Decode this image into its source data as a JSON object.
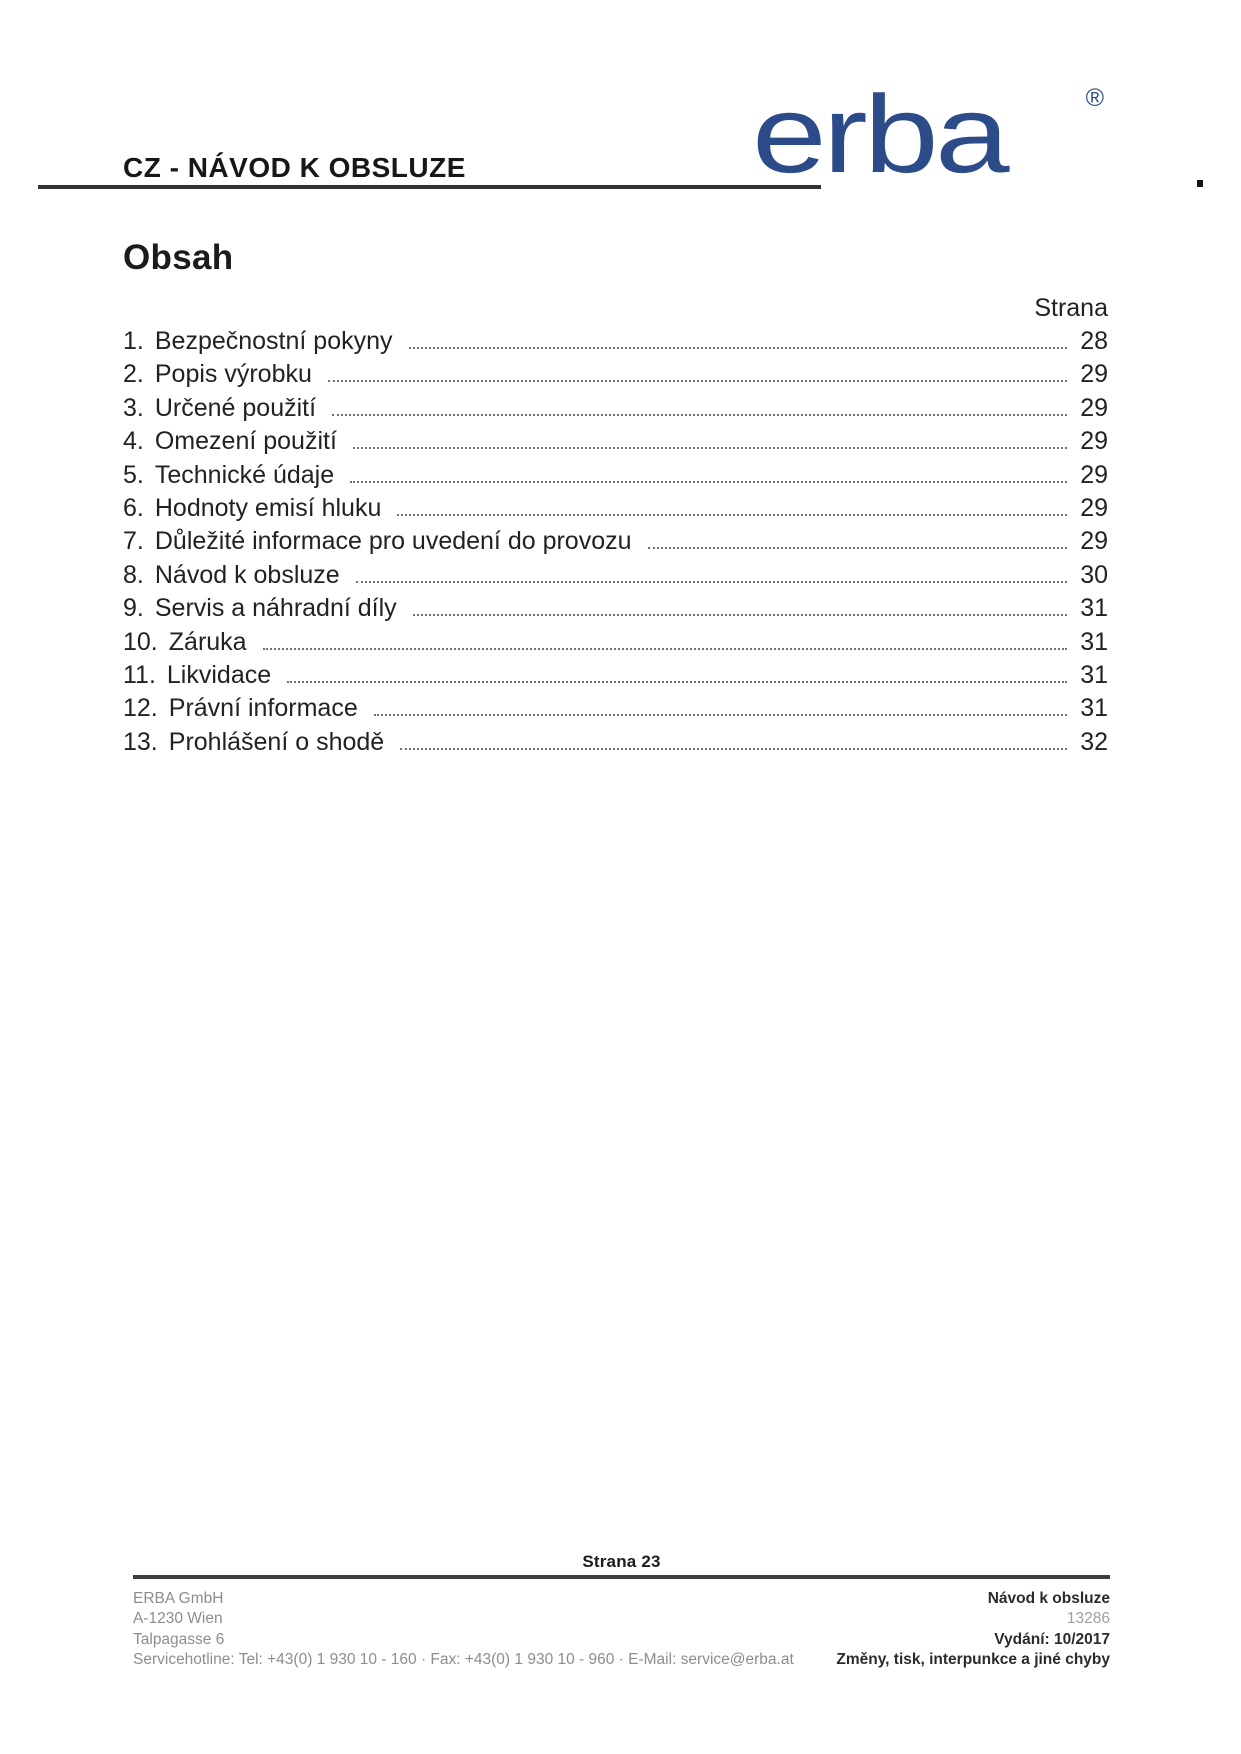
{
  "header": {
    "title": "CZ - NÁVOD K OBSLUZE",
    "logo": {
      "text": "erba",
      "registered_mark": "®",
      "color": "#2b4c88"
    },
    "trailing_period": "."
  },
  "toc": {
    "heading": "Obsah",
    "page_column_label": "Strana",
    "items": [
      {
        "num": "1.",
        "label": "Bezpečnostní pokyny",
        "page": "28"
      },
      {
        "num": "2.",
        "label": "Popis výrobku",
        "page": "29"
      },
      {
        "num": "3.",
        "label": "Určené použití",
        "page": "29"
      },
      {
        "num": "4.",
        "label": "Omezení použití",
        "page": "29"
      },
      {
        "num": "5.",
        "label": "Technické údaje",
        "page": "29"
      },
      {
        "num": "6.",
        "label": "Hodnoty emisí hluku",
        "page": "29"
      },
      {
        "num": "7.",
        "label": "Důležité informace pro uvedení do provozu",
        "page": "29"
      },
      {
        "num": "8.",
        "label": "Návod k obsluze",
        "page": "30"
      },
      {
        "num": "9.",
        "label": "Servis a náhradní díly",
        "page": "31"
      },
      {
        "num": "10.",
        "label": "Záruka",
        "page": "31"
      },
      {
        "num": "11.",
        "label": "Likvidace",
        "page": "31"
      },
      {
        "num": "12.",
        "label": "Právní informace",
        "page": "31"
      },
      {
        "num": "13.",
        "label": "Prohlášení o shodě",
        "page": "32"
      }
    ]
  },
  "footer": {
    "page_label": "Strana 23",
    "company_lines": [
      "ERBA GmbH",
      "A-1230 Wien",
      "Talpagasse 6"
    ],
    "service_line": "Servicehotline: Tel: +43(0) 1 930 10 - 160 · Fax: +43(0) 1 930 10 - 960 · E-Mail: service@erba.at",
    "doc_title": "Návod k obsluze",
    "doc_number": "13286",
    "edition": "Vydání: 10/2017",
    "note": "Změny, tisk, interpunkce a jiné chyby"
  }
}
